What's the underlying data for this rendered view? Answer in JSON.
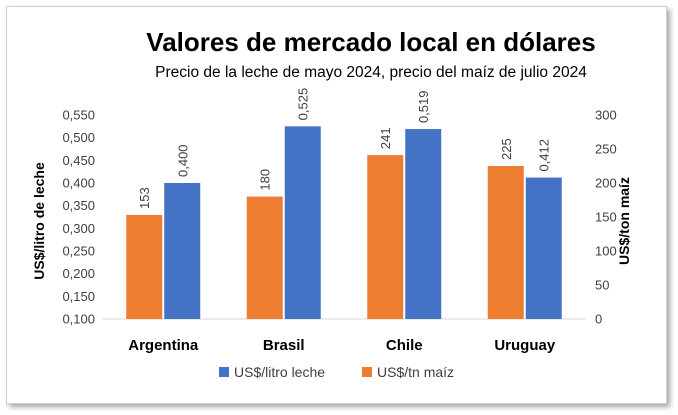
{
  "chart_data": {
    "type": "bar",
    "title": "Valores de mercado local en dólares",
    "subtitle": "Precio de la leche de mayo 2024, precio del maíz de julio 2024",
    "categories": [
      "Argentina",
      "Brasil",
      "Chile",
      "Uruguay"
    ],
    "ylabel_left": "US$/litro de leche",
    "ylabel_right": "US$/ton maíz",
    "ylim_left": [
      0.1,
      0.55
    ],
    "ylim_right": [
      0,
      300
    ],
    "left_ticks": [
      "0,100",
      "0,150",
      "0,200",
      "0,250",
      "0,300",
      "0,350",
      "0,400",
      "0,450",
      "0,500",
      "0,550"
    ],
    "right_ticks": [
      "0",
      "50",
      "100",
      "150",
      "200",
      "250",
      "300"
    ],
    "series": [
      {
        "name": "US$/litro leche",
        "axis": "left",
        "color": "#4472C4",
        "values": [
          0.4,
          0.525,
          0.519,
          0.412
        ],
        "labels": [
          "0,400",
          "0,525",
          "0,519",
          "0,412"
        ]
      },
      {
        "name": "US$/tn maíz",
        "axis": "right",
        "color": "#ED7D31",
        "values": [
          153,
          180,
          241,
          225
        ],
        "labels": [
          "153",
          "180",
          "241",
          "225"
        ]
      }
    ],
    "legend_position": "bottom",
    "grid": false
  }
}
